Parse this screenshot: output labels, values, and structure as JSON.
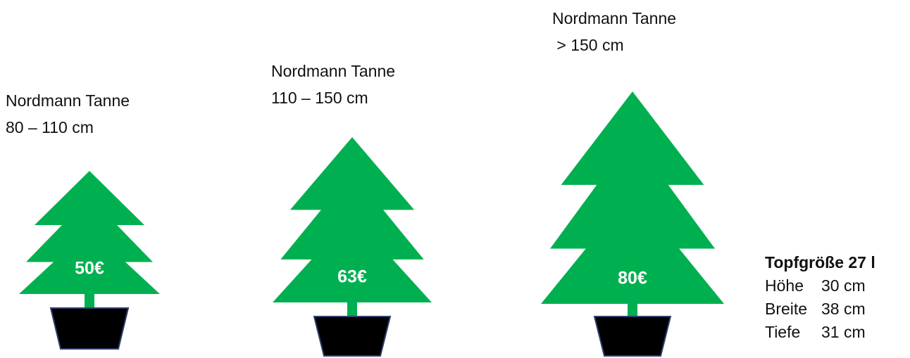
{
  "trees": [
    {
      "name": "Nordmann Tanne",
      "size": "80 – 110 cm",
      "price": "50€"
    },
    {
      "name": "Nordmann Tanne",
      "size": "110 – 150 cm",
      "price": "63€"
    },
    {
      "name": "Nordmann Tanne",
      "size": " > 150 cm",
      "price": "80€"
    }
  ],
  "pot": {
    "title": "Topfgröße 27 l",
    "rows": [
      [
        "Höhe",
        "30 cm"
      ],
      [
        "Breite",
        "38 cm"
      ],
      [
        "Tiefe",
        "31 cm"
      ]
    ]
  }
}
